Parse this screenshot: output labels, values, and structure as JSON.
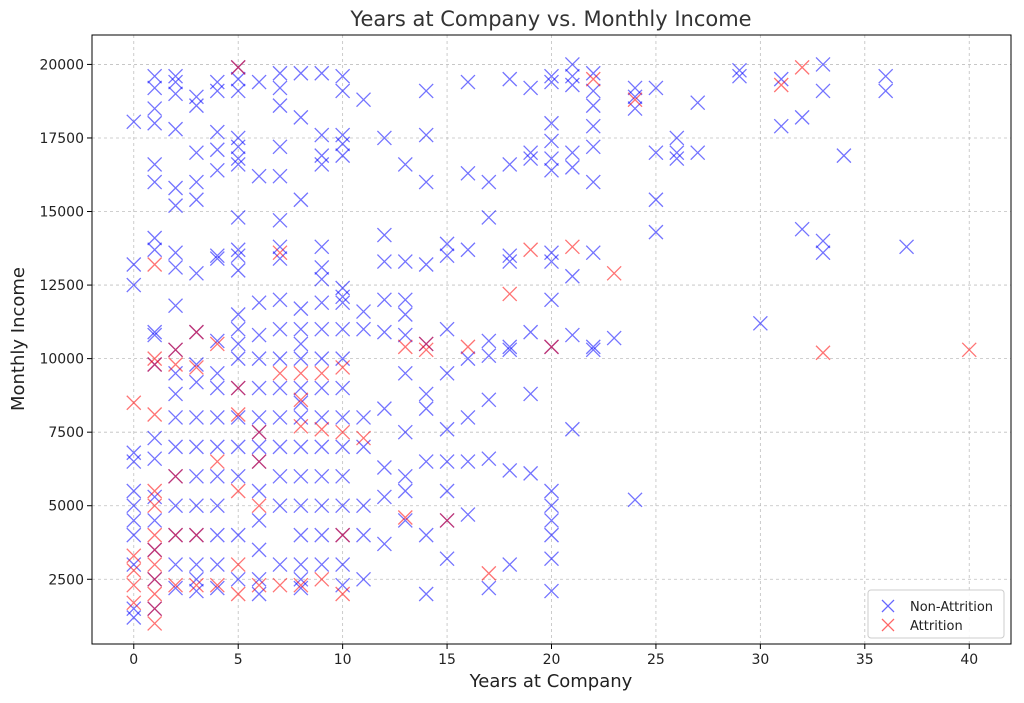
{
  "chart_data": {
    "type": "scatter",
    "title": "Years at Company vs. Monthly Income",
    "xlabel": "Years at Company",
    "ylabel": "Monthly Income",
    "xlim": [
      -2,
      42
    ],
    "ylim": [
      300,
      21000
    ],
    "xticks": [
      0,
      5,
      10,
      15,
      20,
      25,
      30,
      35,
      40
    ],
    "yticks": [
      2500,
      5000,
      7500,
      10000,
      12500,
      15000,
      17500,
      20000
    ],
    "grid": true,
    "marker": "x",
    "legend": {
      "placement": "bottom-right"
    },
    "series": [
      {
        "name": "Non-Attrition",
        "color": "#0000ff",
        "x": [
          0,
          0,
          0,
          0,
          0,
          0,
          0,
          0,
          0,
          0,
          0,
          0,
          1,
          1,
          1,
          1,
          1,
          1,
          1,
          1,
          1,
          1,
          1,
          1,
          1,
          1,
          1,
          1,
          1,
          1,
          2,
          2,
          2,
          2,
          2,
          2,
          2,
          2,
          2,
          2,
          2,
          2,
          2,
          2,
          2,
          2,
          2,
          2,
          2,
          3,
          3,
          3,
          3,
          3,
          3,
          3,
          3,
          3,
          3,
          3,
          3,
          3,
          3,
          3,
          3,
          3,
          4,
          4,
          4,
          4,
          4,
          4,
          4,
          4,
          4,
          4,
          4,
          4,
          4,
          4,
          4,
          4,
          4,
          5,
          5,
          5,
          5,
          5,
          5,
          5,
          5,
          5,
          5,
          5,
          5,
          5,
          5,
          5,
          5,
          5,
          5,
          5,
          5,
          5,
          6,
          6,
          6,
          6,
          6,
          6,
          6,
          6,
          6,
          6,
          6,
          6,
          6,
          6,
          6,
          7,
          7,
          7,
          7,
          7,
          7,
          7,
          7,
          7,
          7,
          7,
          7,
          7,
          7,
          7,
          7,
          7,
          8,
          8,
          8,
          8,
          8,
          8,
          8,
          8,
          8,
          8,
          8,
          8,
          8,
          8,
          8,
          8,
          8,
          9,
          9,
          9,
          9,
          9,
          9,
          9,
          9,
          9,
          9,
          9,
          9,
          9,
          9,
          9,
          9,
          9,
          10,
          10,
          10,
          10,
          10,
          10,
          10,
          10,
          10,
          10,
          10,
          10,
          10,
          10,
          10,
          10,
          10,
          10,
          11,
          11,
          11,
          11,
          11,
          11,
          11,
          11,
          12,
          12,
          12,
          12,
          12,
          12,
          12,
          12,
          12,
          13,
          13,
          13,
          13,
          13,
          13,
          13,
          13,
          13,
          13,
          14,
          14,
          14,
          14,
          14,
          14,
          14,
          14,
          14,
          14,
          15,
          15,
          15,
          15,
          15,
          15,
          15,
          15,
          15,
          16,
          16,
          16,
          16,
          16,
          16,
          16,
          17,
          17,
          17,
          17,
          17,
          17,
          17,
          18,
          18,
          18,
          18,
          18,
          18,
          18,
          18,
          19,
          19,
          19,
          19,
          19,
          19,
          20,
          20,
          20,
          20,
          20,
          20,
          20,
          20,
          20,
          20,
          20,
          20,
          20,
          20,
          20,
          20,
          21,
          21,
          21,
          21,
          21,
          21,
          21,
          21,
          22,
          22,
          22,
          22,
          22,
          22,
          22,
          22,
          22,
          23,
          24,
          24,
          24,
          24,
          25,
          25,
          25,
          25,
          26,
          26,
          26,
          27,
          27,
          29,
          29,
          30,
          31,
          31,
          32,
          32,
          33,
          33,
          33,
          33,
          34,
          36,
          36,
          37
        ],
        "y": [
          18050,
          13200,
          12500,
          6800,
          6500,
          5500,
          5000,
          4500,
          4000,
          3000,
          1500,
          1200,
          19600,
          19200,
          18500,
          18000,
          16600,
          16000,
          14100,
          13700,
          10900,
          10800,
          9800,
          7300,
          6600,
          5300,
          4500,
          3500,
          2500,
          1500,
          19600,
          19400,
          19000,
          17800,
          15800,
          15200,
          13600,
          13100,
          11800,
          10300,
          9500,
          8800,
          8000,
          7000,
          6000,
          5000,
          4000,
          3000,
          2200,
          18900,
          18600,
          17000,
          16000,
          15400,
          12900,
          10900,
          9800,
          9200,
          8000,
          7000,
          6000,
          5000,
          4000,
          3000,
          2500,
          2100,
          19400,
          19100,
          17700,
          17100,
          16400,
          13500,
          13400,
          10600,
          9500,
          9000,
          8000,
          7000,
          6000,
          5000,
          4000,
          3000,
          2200,
          19900,
          19500,
          19100,
          17500,
          17200,
          16800,
          16600,
          14800,
          13700,
          13500,
          13000,
          11500,
          11000,
          10500,
          10000,
          9000,
          8000,
          7000,
          6000,
          4000,
          2500,
          19400,
          16200,
          11900,
          10800,
          10000,
          9000,
          8000,
          7500,
          7000,
          6500,
          5500,
          4500,
          3500,
          2500,
          2000,
          19700,
          19200,
          18600,
          17200,
          16200,
          14700,
          13800,
          13400,
          12000,
          11000,
          10000,
          9000,
          8000,
          7000,
          6000,
          5000,
          3000,
          19700,
          18200,
          15400,
          11700,
          11000,
          10500,
          10000,
          9000,
          8500,
          8000,
          7000,
          6000,
          5000,
          4000,
          3000,
          2500,
          2200,
          19700,
          17600,
          16900,
          16600,
          13800,
          13100,
          12700,
          11900,
          11000,
          10000,
          9000,
          8000,
          7000,
          6000,
          5000,
          4000,
          3000,
          19600,
          19100,
          17600,
          17300,
          16900,
          12400,
          12100,
          11900,
          11000,
          10000,
          9000,
          8000,
          7000,
          6000,
          5000,
          4000,
          3000,
          2300,
          18800,
          11600,
          11000,
          8000,
          7000,
          5000,
          4000,
          2500,
          17500,
          14200,
          13300,
          12000,
          10900,
          8300,
          6300,
          5300,
          3700,
          16600,
          13300,
          12000,
          11500,
          10800,
          9500,
          7500,
          6000,
          5500,
          4500,
          19100,
          17600,
          16000,
          13200,
          10500,
          8800,
          8300,
          6500,
          4000,
          2000,
          13900,
          13500,
          11000,
          9500,
          7600,
          6500,
          5500,
          4500,
          3200,
          19400,
          16300,
          13700,
          10000,
          8000,
          6500,
          4700,
          16000,
          14800,
          10600,
          10100,
          8600,
          6600,
          2200,
          19500,
          16600,
          13500,
          13300,
          10400,
          10300,
          6200,
          3000,
          19200,
          17000,
          16800,
          10900,
          8800,
          6100,
          19600,
          19400,
          18000,
          17400,
          16800,
          16400,
          13600,
          13300,
          12000,
          10400,
          5500,
          5000,
          4500,
          4000,
          3200,
          2100,
          20000,
          19600,
          19300,
          17000,
          16500,
          12800,
          10800,
          7600,
          19700,
          19100,
          18600,
          17900,
          17200,
          16000,
          13600,
          10400,
          10300,
          10700,
          19200,
          18900,
          18500,
          5200,
          19200,
          17000,
          15400,
          14300,
          17500,
          17000,
          16800,
          18700,
          17000,
          19800,
          19600,
          11200,
          19500,
          17900,
          18200,
          14400,
          20000,
          19100,
          14000,
          13600,
          16900,
          19600,
          19100,
          13800
        ]
      },
      {
        "name": "Attrition",
        "color": "#ff0000",
        "x": [
          0,
          0,
          0,
          0,
          0,
          1,
          1,
          1,
          1,
          1,
          1,
          1,
          1,
          1,
          1,
          1,
          1,
          1,
          2,
          2,
          2,
          2,
          2,
          3,
          3,
          3,
          3,
          4,
          4,
          4,
          5,
          5,
          5,
          5,
          5,
          5,
          6,
          6,
          6,
          6,
          7,
          7,
          7,
          8,
          8,
          8,
          8,
          9,
          9,
          9,
          10,
          10,
          10,
          10,
          11,
          13,
          13,
          14,
          14,
          15,
          16,
          17,
          18,
          19,
          20,
          21,
          22,
          23,
          24,
          31,
          32,
          33,
          40
        ],
        "y": [
          8500,
          3300,
          2800,
          2300,
          1700,
          13200,
          10000,
          9800,
          8100,
          5500,
          5000,
          4000,
          3500,
          3000,
          2500,
          2000,
          1500,
          1000,
          10300,
          9800,
          6000,
          4000,
          2300,
          10900,
          9700,
          4000,
          2300,
          10500,
          6500,
          2300,
          19900,
          9000,
          8100,
          5500,
          3000,
          2000,
          7500,
          6500,
          5000,
          2300,
          13600,
          9500,
          2300,
          9500,
          8600,
          7700,
          2300,
          9500,
          7600,
          2500,
          9700,
          7500,
          4000,
          2000,
          7300,
          10400,
          4600,
          10500,
          10300,
          4500,
          10400,
          2700,
          12200,
          13700,
          10400,
          13800,
          19500,
          12900,
          18800,
          19300,
          19900,
          10200,
          10300
        ]
      }
    ]
  }
}
